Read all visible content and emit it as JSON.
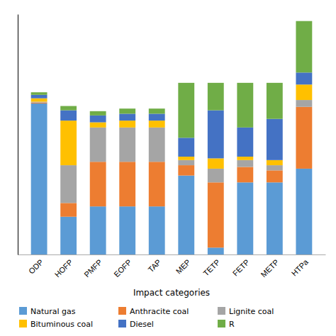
{
  "chart_data": {
    "type": "bar",
    "stacked": true,
    "categories": [
      "ODP",
      "HOFP",
      "PMFP",
      "EOFP",
      "TAP",
      "MEP",
      "TETP",
      "FETP",
      "METP",
      "HTPa"
    ],
    "series": [
      {
        "name": "Natural gas",
        "color": "#5b9bd5",
        "values": [
          0.88,
          0.22,
          0.28,
          0.28,
          0.28,
          0.46,
          0.04,
          0.42,
          0.42,
          0.5
        ]
      },
      {
        "name": "Anthracite coal",
        "color": "#ed7d31",
        "values": [
          0.005,
          0.08,
          0.26,
          0.26,
          0.26,
          0.06,
          0.38,
          0.09,
          0.07,
          0.36
        ]
      },
      {
        "name": "Lignite coal",
        "color": "#a5a5a5",
        "values": [
          0.005,
          0.22,
          0.2,
          0.2,
          0.2,
          0.03,
          0.08,
          0.04,
          0.03,
          0.04
        ]
      },
      {
        "name": "Bituminous coal",
        "color": "#ffc000",
        "values": [
          0.02,
          0.26,
          0.03,
          0.04,
          0.04,
          0.02,
          0.06,
          0.02,
          0.03,
          0.09
        ]
      },
      {
        "name": "Diesel",
        "color": "#4472c4",
        "values": [
          0.02,
          0.06,
          0.04,
          0.04,
          0.04,
          0.11,
          0.28,
          0.17,
          0.24,
          0.07
        ]
      },
      {
        "name": "R",
        "color": "#70ad47",
        "values": [
          0.015,
          0.025,
          0.025,
          0.03,
          0.03,
          0.32,
          0.16,
          0.26,
          0.21,
          0.3
        ]
      }
    ],
    "xlabel": "Impact categories",
    "ylim": [
      0,
      1.4
    ],
    "tick_labels": "x",
    "legend": "bottom"
  }
}
